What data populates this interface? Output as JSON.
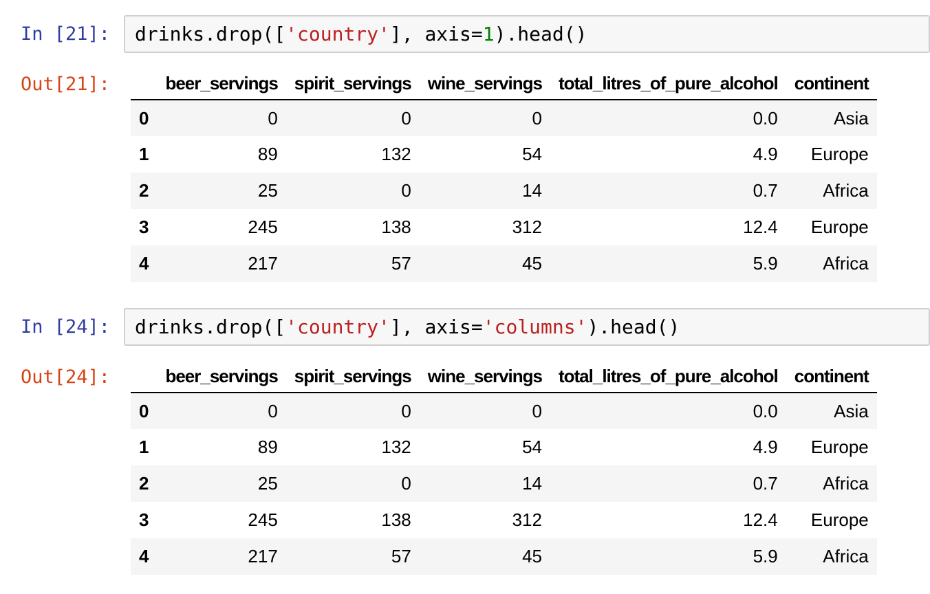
{
  "app": "jupyter-notebook",
  "colors": {
    "prompt_in": "#303F9F",
    "prompt_out": "#D84315",
    "code_string": "#BA2121",
    "code_number": "#008000",
    "code_cell_bg": "#f7f7f7",
    "code_cell_border": "#cfcfcf",
    "table_stripe": "#f5f5f5",
    "header_border": "#000000"
  },
  "cells": [
    {
      "prompt_in": "In [21]:",
      "prompt_out": "Out[21]:",
      "code_tokens": [
        {
          "text": "drinks.drop([",
          "type": "plain"
        },
        {
          "text": "'country'",
          "type": "string"
        },
        {
          "text": "], axis=",
          "type": "plain"
        },
        {
          "text": "1",
          "type": "number"
        },
        {
          "text": ").head()",
          "type": "plain"
        }
      ],
      "output_table": {
        "headers": [
          "",
          "beer_servings",
          "spirit_servings",
          "wine_servings",
          "total_litres_of_pure_alcohol",
          "continent"
        ],
        "rows": [
          [
            "0",
            "0",
            "0",
            "0",
            "0.0",
            "Asia"
          ],
          [
            "1",
            "89",
            "132",
            "54",
            "4.9",
            "Europe"
          ],
          [
            "2",
            "25",
            "0",
            "14",
            "0.7",
            "Africa"
          ],
          [
            "3",
            "245",
            "138",
            "312",
            "12.4",
            "Europe"
          ],
          [
            "4",
            "217",
            "57",
            "45",
            "5.9",
            "Africa"
          ]
        ]
      }
    },
    {
      "prompt_in": "In [24]:",
      "prompt_out": "Out[24]:",
      "code_tokens": [
        {
          "text": "drinks.drop([",
          "type": "plain"
        },
        {
          "text": "'country'",
          "type": "string"
        },
        {
          "text": "], axis=",
          "type": "plain"
        },
        {
          "text": "'columns'",
          "type": "string"
        },
        {
          "text": ").head()",
          "type": "plain"
        }
      ],
      "output_table": {
        "headers": [
          "",
          "beer_servings",
          "spirit_servings",
          "wine_servings",
          "total_litres_of_pure_alcohol",
          "continent"
        ],
        "rows": [
          [
            "0",
            "0",
            "0",
            "0",
            "0.0",
            "Asia"
          ],
          [
            "1",
            "89",
            "132",
            "54",
            "4.9",
            "Europe"
          ],
          [
            "2",
            "25",
            "0",
            "14",
            "0.7",
            "Africa"
          ],
          [
            "3",
            "245",
            "138",
            "312",
            "12.4",
            "Europe"
          ],
          [
            "4",
            "217",
            "57",
            "45",
            "5.9",
            "Africa"
          ]
        ]
      }
    }
  ]
}
